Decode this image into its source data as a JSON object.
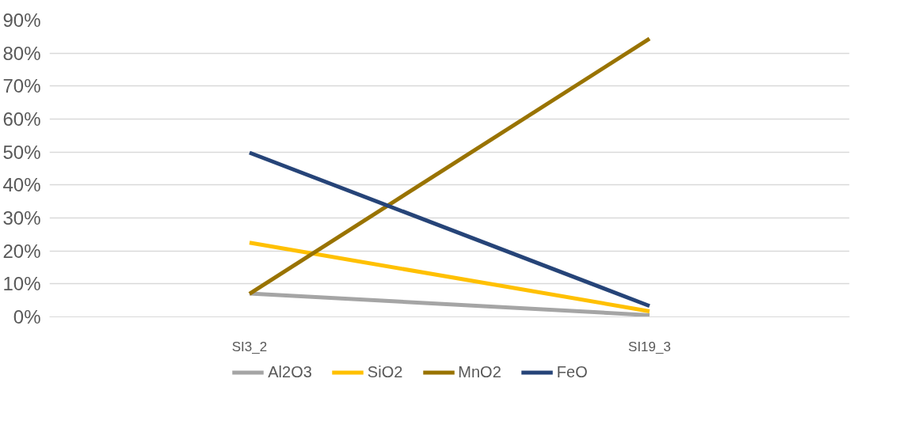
{
  "chart_data": {
    "type": "line",
    "categories": [
      "SI3_2",
      "SI19_3"
    ],
    "series": [
      {
        "name": "Al2O3",
        "color": "#a5a5a5",
        "values": [
          7.1,
          0.5
        ]
      },
      {
        "name": "SiO2",
        "color": "#ffc000",
        "values": [
          22.5,
          1.7
        ]
      },
      {
        "name": "MnO2",
        "color": "#997300",
        "values": [
          7,
          84.4
        ]
      },
      {
        "name": "FeO",
        "color": "#264478",
        "values": [
          49.8,
          3.3
        ]
      }
    ],
    "ylim": [
      0,
      90
    ],
    "yticks": [
      {
        "value": 0,
        "label": "0%"
      },
      {
        "value": 10,
        "label": "10%"
      },
      {
        "value": 20,
        "label": "20%"
      },
      {
        "value": 30,
        "label": "30%"
      },
      {
        "value": 40,
        "label": "40%"
      },
      {
        "value": 50,
        "label": "50%"
      },
      {
        "value": 60,
        "label": "60%"
      },
      {
        "value": 70,
        "label": "70%"
      },
      {
        "value": 80,
        "label": "80%"
      },
      {
        "value": 90,
        "label": "90%"
      }
    ],
    "grid": "y",
    "legend": "bottom",
    "marker": "none",
    "line_style": "solid"
  }
}
